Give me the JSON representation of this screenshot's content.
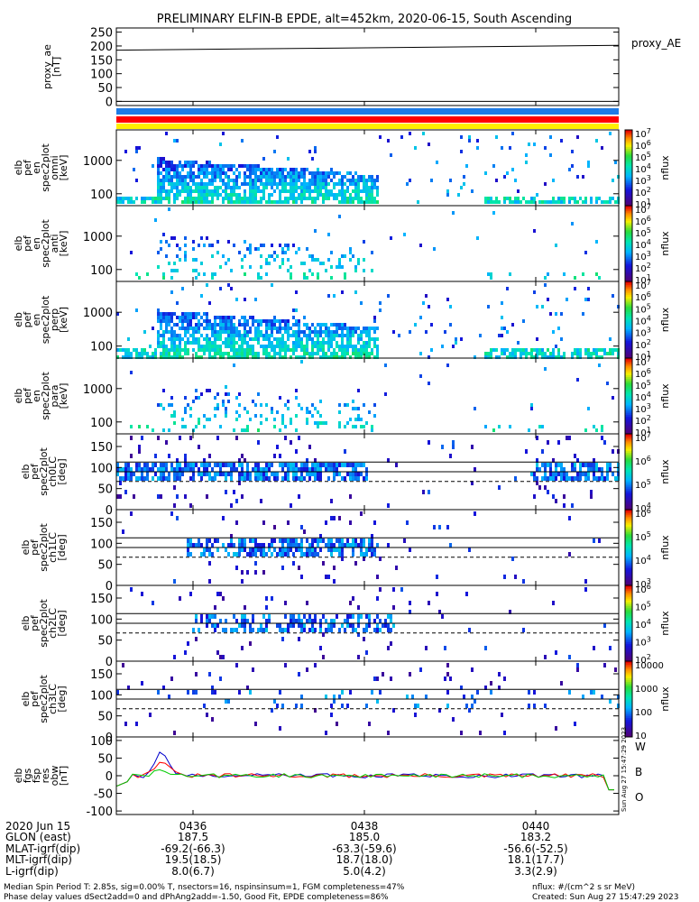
{
  "chart_data": {
    "type": "heatmap",
    "title": "PRELIMINARY ELFIN-B EPDE, alt=452km, 2020-06-15, South Ascending",
    "x_ticks": [
      "0436",
      "0438",
      "0440"
    ],
    "panels": [
      {
        "id": "proxy_ae",
        "type": "line",
        "ylabel": [
          "proxy_ae",
          "[nT]"
        ],
        "yticks": [
          "250",
          "200",
          "150",
          "100",
          "50",
          "0"
        ],
        "ylim": [
          -15,
          265
        ],
        "right_label": "proxy_AE",
        "series": [
          {
            "x": [
              0,
              1
            ],
            "values": [
              185,
              202
            ]
          }
        ]
      },
      {
        "id": "elb_pef_en_spec2plot_omni",
        "type": "heatmap",
        "ylabel": [
          "elb",
          "pef",
          "en",
          "spec2plot",
          "omni",
          "[keV]"
        ],
        "yticks": [
          "1000",
          "100"
        ],
        "log_y": true,
        "colorbar_ticks": [
          "10^7",
          "10^6",
          "10^5",
          "10^4",
          "10^3",
          "10^2",
          "10^1"
        ],
        "colorbar_label": "nflux"
      },
      {
        "id": "elb_pef_en_spec2plot_anti",
        "type": "heatmap",
        "ylabel": [
          "elb",
          "pef",
          "en",
          "spec2plot",
          "anti",
          "[keV]"
        ],
        "yticks": [
          "1000",
          "100"
        ],
        "log_y": true,
        "colorbar_ticks": [
          "10^7",
          "10^6",
          "10^5",
          "10^4",
          "10^3",
          "10^2",
          "10^1"
        ],
        "colorbar_label": "nflux"
      },
      {
        "id": "elb_pef_en_spec2plot_perp",
        "type": "heatmap",
        "ylabel": [
          "elb",
          "pef",
          "en",
          "spec2plot",
          "perp",
          "[keV]"
        ],
        "yticks": [
          "1000",
          "100"
        ],
        "log_y": true,
        "colorbar_ticks": [
          "10^7",
          "10^6",
          "10^5",
          "10^4",
          "10^3",
          "10^2",
          "10^1"
        ],
        "colorbar_label": "nflux"
      },
      {
        "id": "elb_pef_en_spec2plot_para",
        "type": "heatmap",
        "ylabel": [
          "elb",
          "pef",
          "en",
          "spec2plot",
          "para",
          "[keV]"
        ],
        "yticks": [
          "1000",
          "100"
        ],
        "log_y": true,
        "colorbar_ticks": [
          "10^7",
          "10^6",
          "10^5",
          "10^4",
          "10^3",
          "10^2",
          "10^1"
        ],
        "colorbar_label": "nflux"
      },
      {
        "id": "elb_pef_spec2plot_ch0LC",
        "type": "heatmap",
        "ylabel": [
          "elb",
          "pef",
          "spec2plot",
          "ch0LC",
          "[deg]"
        ],
        "yticks": [
          "150",
          "100",
          "50",
          "0"
        ],
        "ylim": [
          0,
          180
        ],
        "colorbar_ticks": [
          "10^7",
          "10^6",
          "10^5",
          "10^4"
        ],
        "colorbar_label": "nflux"
      },
      {
        "id": "elb_pef_spec2plot_ch1LC",
        "type": "heatmap",
        "ylabel": [
          "elb",
          "pef",
          "spec2plot",
          "ch1LC",
          "[deg]"
        ],
        "yticks": [
          "150",
          "100",
          "50",
          "0"
        ],
        "ylim": [
          0,
          180
        ],
        "colorbar_ticks": [
          "10^6",
          "10^5",
          "10^4",
          "10^3"
        ],
        "colorbar_label": "nflux"
      },
      {
        "id": "elb_pef_spec2plot_ch2LC",
        "type": "heatmap",
        "ylabel": [
          "elb",
          "pef",
          "spec2plot",
          "ch2LC",
          "[deg]"
        ],
        "yticks": [
          "150",
          "100",
          "50",
          "0"
        ],
        "ylim": [
          0,
          180
        ],
        "colorbar_ticks": [
          "10^6",
          "10^5",
          "10^4",
          "10^3",
          "10^2"
        ],
        "colorbar_label": "nflux"
      },
      {
        "id": "elb_pef_spec2plot_ch3LC",
        "type": "heatmap",
        "ylabel": [
          "elb",
          "pef",
          "spec2plot",
          "ch3LC",
          "[deg]"
        ],
        "yticks": [
          "150",
          "100",
          "50",
          "0"
        ],
        "ylim": [
          0,
          180
        ],
        "colorbar_ticks": [
          "10000",
          "1000",
          "100",
          "10"
        ],
        "colorbar_label": "nflux"
      },
      {
        "id": "elb_fgs_fsp_res_obw",
        "type": "line",
        "ylabel": [
          "elb",
          "fgs",
          "fsp",
          "res",
          "obw",
          "[nT]"
        ],
        "yticks": [
          "100",
          "50",
          "0",
          "-50",
          "-100"
        ],
        "ylim": [
          -110,
          110
        ],
        "legend": [
          "W",
          "B",
          "O"
        ],
        "stamp": "Sun Aug 27 15:47:29 2023"
      }
    ]
  },
  "colors": {
    "red": "#ff0000",
    "green": "#00cc00",
    "blue": "#0000cc",
    "band_blue": "#1e7be6",
    "band_red": "#ff0000",
    "band_yellow": "#ffee00"
  },
  "footer": {
    "rows": [
      {
        "label": "2020 Jun 15",
        "values": [
          "0436",
          "0438",
          "0440"
        ]
      },
      {
        "label": "GLON (east)",
        "values": [
          "187.5",
          "185.0",
          "183.2"
        ]
      },
      {
        "label": "MLAT-igrf(dip)",
        "values": [
          "-69.2(-66.3)",
          "-63.3(-59.6)",
          "-56.6(-52.5)"
        ]
      },
      {
        "label": "MLT-igrf(dip)",
        "values": [
          "19.5(18.5)",
          "18.7(18.0)",
          "18.1(17.7)"
        ]
      },
      {
        "label": "L-igrf(dip)",
        "values": [
          "8.0(6.7)",
          "5.0(4.2)",
          "3.3(2.9)"
        ]
      }
    ],
    "note_line1": "Median Spin Period T: 2.85s, sig=0.00% T, nsectors=16, nspinsinsum=1, FGM completeness=47%",
    "note_line2": "Phase delay values dSect2add=0 and dPhAng2add=-1.50, Good Fit, EPDE completeness=86%",
    "units_note": "nflux: #/(cm^2 s sr MeV)",
    "created_note": "Created: Sun Aug 27 15:47:29 2023"
  }
}
